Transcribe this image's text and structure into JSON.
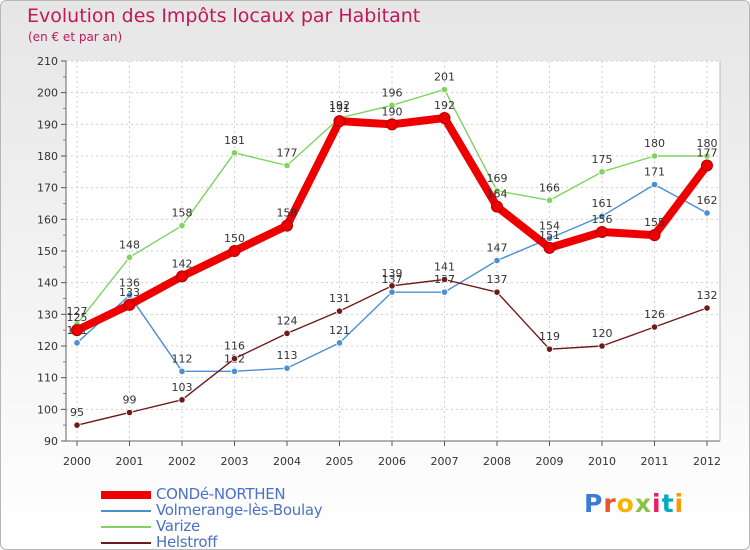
{
  "title": "Evolution des Impôts locaux par Habitant",
  "subtitle": "(en € et par an)",
  "logo": {
    "text": "Proxiti",
    "colors": [
      "#3a7bd5",
      "#e8542f",
      "#f4b400",
      "#8bc34a",
      "#e91e63",
      "#00acc1",
      "#ff9800"
    ]
  },
  "chart_data": {
    "type": "line",
    "x": [
      "2000",
      "2001",
      "2002",
      "2003",
      "2004",
      "2005",
      "2006",
      "2007",
      "2008",
      "2009",
      "2010",
      "2011",
      "2012"
    ],
    "ylim": [
      90,
      210
    ],
    "yticks": [
      "90",
      "100",
      "110",
      "120",
      "130",
      "140",
      "150",
      "160",
      "170",
      "180",
      "190",
      "200",
      "210"
    ],
    "grid": true,
    "legend_position": "bottom-left",
    "series": [
      {
        "name": "Volmerange-lès-Boulay",
        "color": "#4a8fd0",
        "values": [
          121,
          136,
          112,
          112,
          113,
          121,
          137,
          137,
          147,
          154,
          161,
          171,
          162
        ],
        "labels": [
          "121",
          "136",
          "112",
          "112",
          "113",
          "121",
          "137",
          "137",
          "147",
          "154",
          "161",
          "171",
          "162"
        ]
      },
      {
        "name": "Varize",
        "color": "#7fd35f",
        "values": [
          127,
          148,
          158,
          181,
          177,
          192,
          196,
          201,
          169,
          166,
          175,
          180,
          180
        ],
        "labels": [
          "127",
          "148",
          "158",
          "181",
          "177",
          "192",
          "196",
          "201",
          "169",
          "166",
          "175",
          "180",
          "180"
        ]
      },
      {
        "name": "Helstroff",
        "color": "#6e1a1a",
        "values": [
          95,
          99,
          103,
          116,
          124,
          131,
          139,
          141,
          137,
          119,
          120,
          126,
          132
        ],
        "labels": [
          "95",
          "99",
          "103",
          "116",
          "124",
          "131",
          "139",
          "141",
          "137",
          "119",
          "120",
          "126",
          "132"
        ]
      },
      {
        "name": "CONDé-NORTHEN",
        "color": "#ee0000",
        "values": [
          125,
          133,
          142,
          150,
          158,
          191,
          190,
          192,
          164,
          151,
          156,
          155,
          177
        ],
        "labels": [
          "125",
          "133",
          "142",
          "150",
          "158",
          "191",
          "190",
          "192",
          "164",
          "151",
          "156",
          "155",
          "177"
        ]
      }
    ],
    "legend": [
      "CONDé-NORTHEN",
      "Volmerange-lès-Boulay",
      "Varize",
      "Helstroff"
    ]
  }
}
